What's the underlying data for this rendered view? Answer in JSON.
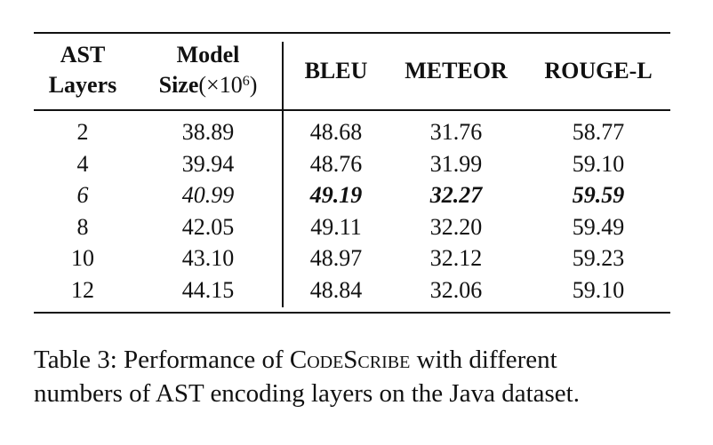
{
  "table": {
    "headers": {
      "col1_line1": "AST",
      "col1_line2": "Layers",
      "col2_line1": "Model",
      "col2_line2_bold": "Size",
      "col2_line2_paren_open": "(×10",
      "col2_line2_exp": "6",
      "col2_line2_paren_close": ")",
      "col3": "BLEU",
      "col4": "METEOR",
      "col5": "ROUGE-L"
    },
    "rows": [
      {
        "layers": "2",
        "size": "38.89",
        "bleu": "48.68",
        "meteor": "31.76",
        "rouge": "58.77"
      },
      {
        "layers": "4",
        "size": "39.94",
        "bleu": "48.76",
        "meteor": "31.99",
        "rouge": "59.10"
      },
      {
        "layers": "6",
        "size": "40.99",
        "bleu": "49.19",
        "meteor": "32.27",
        "rouge": "59.59"
      },
      {
        "layers": "8",
        "size": "42.05",
        "bleu": "49.11",
        "meteor": "32.20",
        "rouge": "59.49"
      },
      {
        "layers": "10",
        "size": "43.10",
        "bleu": "48.97",
        "meteor": "32.12",
        "rouge": "59.23"
      },
      {
        "layers": "12",
        "size": "44.15",
        "bleu": "48.84",
        "meteor": "32.06",
        "rouge": "59.10"
      }
    ]
  },
  "caption": {
    "prefix": "Table 3: Performance of ",
    "name": "CodeScribe",
    "line1_suffix": " with different",
    "line2": "numbers of AST encoding layers on the Java dataset."
  }
}
